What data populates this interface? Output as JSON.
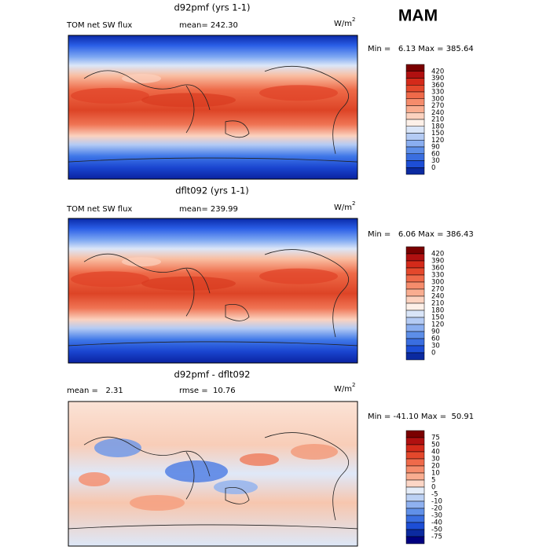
{
  "title": "MAM",
  "panels": [
    {
      "title": "d92pmf (yrs 1-1)",
      "left": "TOM net SW flux",
      "mid": "mean= 242.30",
      "units": {
        "base": "W/m",
        "sup": "2"
      },
      "minmax": "Min =   6.13 Max = 385.64",
      "levels": [
        "420",
        "390",
        "360",
        "330",
        "300",
        "270",
        "240",
        "210",
        "180",
        "150",
        "120",
        "90",
        "60",
        "30",
        "0"
      ]
    },
    {
      "title": "dflt092 (yrs 1-1)",
      "left": "TOM net SW flux",
      "mid": "mean= 239.99",
      "units": {
        "base": "W/m",
        "sup": "2"
      },
      "minmax": "Min =   6.06 Max = 386.43",
      "levels": [
        "420",
        "390",
        "360",
        "330",
        "300",
        "270",
        "240",
        "210",
        "180",
        "150",
        "120",
        "90",
        "60",
        "30",
        "0"
      ]
    },
    {
      "title": "d92pmf - dflt092",
      "left": "mean =   2.31",
      "mid": "rmse =  10.76",
      "units": {
        "base": "W/m",
        "sup": "2"
      },
      "minmax": "Min = -41.10 Max =  50.91",
      "levels": [
        "75",
        "50",
        "40",
        "30",
        "20",
        "10",
        "5",
        "0",
        "-5",
        "-10",
        "-20",
        "-30",
        "-40",
        "-50",
        "-75"
      ]
    }
  ]
}
